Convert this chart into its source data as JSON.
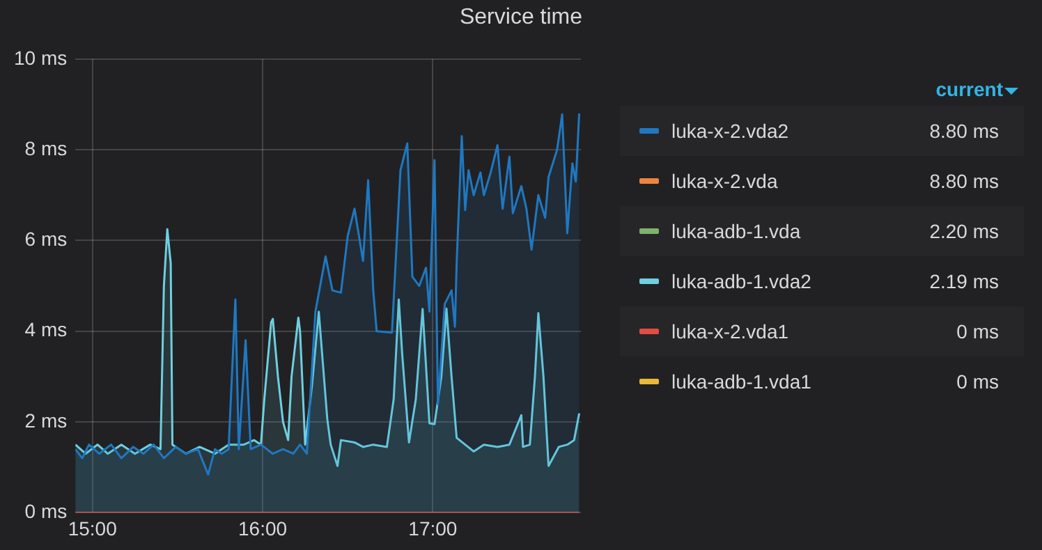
{
  "chart_data": {
    "type": "area",
    "title": "Service time",
    "legend": "right",
    "legend_title": "current",
    "grid": true,
    "marker": "none",
    "line_style": "solid",
    "xlim": [
      14.9,
      17.87
    ],
    "xticks": [
      {
        "value": 15,
        "label": "15:00"
      },
      {
        "value": 16,
        "label": "16:00"
      },
      {
        "value": 17,
        "label": "17:00"
      }
    ],
    "ylim": [
      0,
      10
    ],
    "yticks": [
      {
        "value": 0,
        "label": "0 ms"
      },
      {
        "value": 2,
        "label": "2 ms"
      },
      {
        "value": 4,
        "label": "4 ms"
      },
      {
        "value": 6,
        "label": "6 ms"
      },
      {
        "value": 8,
        "label": "8 ms"
      },
      {
        "value": 10,
        "label": "10 ms"
      }
    ],
    "annotations": [
      "8.80 ms",
      "8.80 ms",
      "2.20 ms",
      "2.19 ms",
      "0 ms",
      "0 ms"
    ],
    "series": [
      {
        "name": "luka-x-2.vda2",
        "color": "#1f78c1",
        "x": [
          14.9,
          14.94,
          14.98,
          15.04,
          15.11,
          15.17,
          15.24,
          15.3,
          15.36,
          15.42,
          15.49,
          15.55,
          15.62,
          15.68,
          15.72,
          15.76,
          15.8,
          15.84,
          15.86,
          15.9,
          15.93,
          15.99,
          16.06,
          16.12,
          16.18,
          16.22,
          16.26,
          16.31,
          16.37,
          16.41,
          16.46,
          16.5,
          16.54,
          16.59,
          16.62,
          16.65,
          16.67,
          16.76,
          16.81,
          16.85,
          16.88,
          16.92,
          16.96,
          16.98,
          17.01,
          17.03,
          17.07,
          17.11,
          17.13,
          17.14,
          17.17,
          17.19,
          17.21,
          17.24,
          17.28,
          17.3,
          17.34,
          17.38,
          17.41,
          17.45,
          17.47,
          17.52,
          17.55,
          17.58,
          17.62,
          17.66,
          17.68,
          17.73,
          17.76,
          17.79,
          17.82,
          17.84,
          17.86
        ],
        "values": [
          1.4,
          1.2,
          1.5,
          1.3,
          1.5,
          1.2,
          1.45,
          1.3,
          1.5,
          1.2,
          1.45,
          1.3,
          1.4,
          0.84,
          1.4,
          1.3,
          1.4,
          4.7,
          1.4,
          3.8,
          1.4,
          1.5,
          1.3,
          1.4,
          1.3,
          1.5,
          1.3,
          4.43,
          5.65,
          4.9,
          4.85,
          6.1,
          6.7,
          5.55,
          7.33,
          4.9,
          4.0,
          3.97,
          7.55,
          8.14,
          5.2,
          5.0,
          5.4,
          4.43,
          7.77,
          2.39,
          4.6,
          4.9,
          4.1,
          5.5,
          8.3,
          6.67,
          7.55,
          7.0,
          7.5,
          7.0,
          7.5,
          8.1,
          6.7,
          7.85,
          6.6,
          7.2,
          6.7,
          5.8,
          7.0,
          6.5,
          7.4,
          8.0,
          8.78,
          6.16,
          7.7,
          7.3,
          8.8
        ]
      },
      {
        "name": "luka-x-2.vda",
        "color": "#ef843c",
        "type": "line"
      },
      {
        "name": "luka-adb-1.vda",
        "color": "#7eb26d",
        "type": "line"
      },
      {
        "name": "luka-adb-1.vda2",
        "color": "#6ed0e0",
        "x": [
          14.9,
          14.96,
          15.03,
          15.09,
          15.17,
          15.25,
          15.34,
          15.4,
          15.42,
          15.44,
          15.46,
          15.47,
          15.55,
          15.63,
          15.72,
          15.8,
          15.89,
          15.95,
          15.99,
          16.01,
          16.05,
          16.06,
          16.09,
          16.12,
          16.15,
          16.17,
          16.21,
          16.22,
          16.25,
          16.29,
          16.33,
          16.38,
          16.4,
          16.44,
          16.46,
          16.54,
          16.59,
          16.65,
          16.73,
          16.77,
          16.8,
          16.82,
          16.86,
          16.9,
          16.94,
          16.98,
          17.01,
          17.05,
          17.08,
          17.11,
          17.14,
          17.19,
          17.24,
          17.3,
          17.38,
          17.45,
          17.52,
          17.53,
          17.57,
          17.6,
          17.62,
          17.65,
          17.68,
          17.74,
          17.79,
          17.83,
          17.86
        ],
        "values": [
          1.5,
          1.3,
          1.5,
          1.3,
          1.5,
          1.3,
          1.5,
          1.4,
          5.0,
          6.25,
          5.5,
          1.5,
          1.3,
          1.45,
          1.3,
          1.5,
          1.5,
          1.6,
          1.5,
          2.5,
          4.2,
          4.27,
          3.0,
          2.0,
          1.6,
          3.0,
          4.3,
          4.0,
          1.5,
          2.8,
          4.43,
          2.06,
          1.5,
          1.03,
          1.6,
          1.55,
          1.45,
          1.5,
          1.45,
          2.5,
          4.7,
          3.5,
          1.55,
          2.5,
          4.49,
          1.97,
          1.95,
          3.0,
          4.5,
          3.0,
          1.65,
          1.5,
          1.35,
          1.5,
          1.45,
          1.5,
          2.15,
          1.45,
          1.5,
          3.0,
          4.4,
          3.0,
          1.03,
          1.45,
          1.5,
          1.6,
          2.19
        ]
      },
      {
        "name": "luka-x-2.vda1",
        "color": "#e24d42",
        "type": "line",
        "x": [
          14.9,
          17.86
        ],
        "values": [
          0,
          0
        ]
      },
      {
        "name": "luka-adb-1.vda1",
        "color": "#eab839",
        "type": "line"
      }
    ]
  }
}
